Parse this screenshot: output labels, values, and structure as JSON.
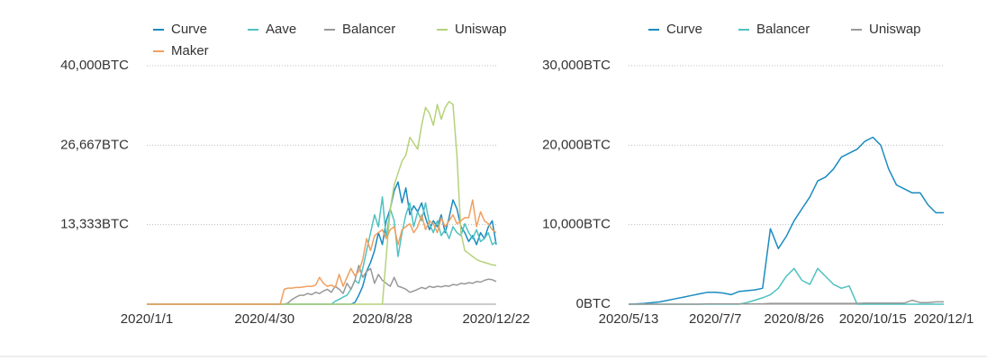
{
  "chart_data": [
    {
      "type": "line",
      "categories": [
        "2020/1/1",
        null,
        null,
        null,
        null,
        null,
        null,
        null,
        null,
        null,
        null,
        null,
        null,
        null,
        null,
        null,
        null,
        null,
        null,
        null,
        null,
        null,
        null,
        null,
        null,
        null,
        null,
        null,
        null,
        null,
        "2020/4/30",
        null,
        null,
        null,
        null,
        null,
        null,
        null,
        null,
        null,
        null,
        null,
        null,
        null,
        null,
        null,
        null,
        null,
        null,
        null,
        null,
        null,
        null,
        null,
        null,
        null,
        null,
        null,
        null,
        null,
        "2020/8/28",
        null,
        null,
        null,
        null,
        null,
        null,
        null,
        null,
        null,
        null,
        null,
        null,
        null,
        null,
        null,
        null,
        null,
        null,
        null,
        null,
        null,
        null,
        null,
        null,
        null,
        null,
        null,
        null,
        "2020/12/22"
      ],
      "series": [
        {
          "name": "Curve",
          "color": "#1a8bc0",
          "values": [
            0,
            0,
            0,
            0,
            0,
            0,
            0,
            0,
            0,
            0,
            0,
            0,
            0,
            0,
            0,
            0,
            0,
            0,
            0,
            0,
            0,
            0,
            0,
            0,
            0,
            0,
            0,
            0,
            0,
            0,
            0,
            0,
            0,
            0,
            0,
            0,
            0,
            0,
            0,
            0,
            0,
            0,
            0,
            0,
            0,
            0,
            0,
            0,
            0,
            0,
            0,
            0,
            0,
            300,
            1500,
            3000,
            5500,
            7000,
            9000,
            12000,
            10000,
            14000,
            16000,
            19000,
            20500,
            17000,
            19500,
            15000,
            16500,
            15500,
            17000,
            14500,
            12500,
            14000,
            13000,
            15000,
            12000,
            14500,
            17500,
            16000,
            13000,
            12000,
            10500,
            11500,
            10000,
            12000,
            11000,
            13000,
            14000,
            10000
          ]
        },
        {
          "name": "Aave",
          "color": "#4fc1c0",
          "values": [
            0,
            0,
            0,
            0,
            0,
            0,
            0,
            0,
            0,
            0,
            0,
            0,
            0,
            0,
            0,
            0,
            0,
            0,
            0,
            0,
            0,
            0,
            0,
            0,
            0,
            0,
            0,
            0,
            0,
            0,
            0,
            0,
            0,
            0,
            0,
            0,
            0,
            0,
            0,
            0,
            0,
            0,
            0,
            0,
            0,
            0,
            0,
            0,
            500,
            800,
            1200,
            1500,
            2500,
            4000,
            3500,
            6000,
            9000,
            12000,
            15000,
            13000,
            18000,
            11000,
            16000,
            14000,
            8000,
            12000,
            15000,
            17000,
            13000,
            15500,
            14000,
            17000,
            13500,
            12000,
            14000,
            11500,
            12500,
            11000,
            13000,
            12000,
            11500,
            13500,
            12000,
            11000,
            12500,
            10500,
            11000,
            12000,
            10000,
            10500
          ]
        },
        {
          "name": "Balancer",
          "color": "#999999",
          "values": [
            0,
            0,
            0,
            0,
            0,
            0,
            0,
            0,
            0,
            0,
            0,
            0,
            0,
            0,
            0,
            0,
            0,
            0,
            0,
            0,
            0,
            0,
            0,
            0,
            0,
            0,
            0,
            0,
            0,
            0,
            0,
            0,
            0,
            0,
            0,
            0,
            200,
            800,
            1200,
            1500,
            1500,
            1800,
            1600,
            2000,
            1800,
            2200,
            2500,
            2000,
            3000,
            2500,
            1800,
            3500,
            2500,
            4000,
            6500,
            4500,
            5500,
            6000,
            3500,
            5000,
            4000,
            3500,
            3000,
            4500,
            3000,
            2800,
            2500,
            2000,
            2200,
            2500,
            2800,
            2600,
            3000,
            2800,
            3000,
            2900,
            3100,
            3000,
            3300,
            3200,
            3500,
            3400,
            3600,
            3500,
            3800,
            3700,
            4000,
            4200,
            4100,
            3800
          ]
        },
        {
          "name": "Uniswap",
          "color": "#b5d27a",
          "values": [
            0,
            0,
            0,
            0,
            0,
            0,
            0,
            0,
            0,
            0,
            0,
            0,
            0,
            0,
            0,
            0,
            0,
            0,
            0,
            0,
            0,
            0,
            0,
            0,
            0,
            0,
            0,
            0,
            0,
            0,
            0,
            0,
            0,
            0,
            0,
            0,
            0,
            0,
            0,
            0,
            0,
            0,
            0,
            0,
            0,
            0,
            0,
            0,
            0,
            0,
            0,
            0,
            0,
            0,
            0,
            0,
            0,
            0,
            0,
            0,
            0,
            8000,
            16000,
            20000,
            22000,
            24000,
            25000,
            28000,
            27000,
            26000,
            30000,
            33000,
            32000,
            30000,
            33500,
            31000,
            33000,
            34000,
            33500,
            25000,
            12000,
            9000,
            8500,
            8000,
            7500,
            7200,
            7000,
            6800,
            6600,
            6500
          ]
        },
        {
          "name": "Maker",
          "color": "#f0a060",
          "values": [
            0,
            0,
            0,
            0,
            0,
            0,
            0,
            0,
            0,
            0,
            0,
            0,
            0,
            0,
            0,
            0,
            0,
            0,
            0,
            0,
            0,
            0,
            0,
            0,
            0,
            0,
            0,
            0,
            0,
            0,
            0,
            0,
            0,
            0,
            0,
            2500,
            2700,
            2700,
            2800,
            2800,
            2900,
            3000,
            3000,
            3200,
            4500,
            3500,
            3000,
            3200,
            2800,
            5000,
            3000,
            4500,
            6000,
            4800,
            5500,
            7500,
            11000,
            9000,
            11500,
            12000,
            12500,
            11000,
            12500,
            13000,
            10000,
            12500,
            13000,
            13500,
            12000,
            13000,
            15000,
            12500,
            14000,
            13500,
            12000,
            14500,
            13000,
            14000,
            15000,
            13500,
            14000,
            14500,
            14500,
            17500,
            13000,
            15500,
            14000,
            13500,
            12500,
            12000
          ]
        }
      ],
      "ylim": [
        0,
        40000
      ],
      "yticks": [
        {
          "value": 13333,
          "label": "13,333BTC"
        },
        {
          "value": 26667,
          "label": "26,667BTC"
        },
        {
          "value": 40000,
          "label": "40,000BTC"
        }
      ],
      "grid": true,
      "legend": "top"
    },
    {
      "type": "line",
      "categories": [
        "2020/5/13",
        null,
        null,
        null,
        null,
        null,
        null,
        null,
        null,
        null,
        null,
        "2020/7/7",
        null,
        null,
        null,
        null,
        null,
        null,
        null,
        null,
        null,
        "2020/8/26",
        null,
        null,
        null,
        null,
        null,
        null,
        null,
        null,
        null,
        "2020/10/15",
        null,
        null,
        null,
        null,
        null,
        null,
        null,
        null,
        "2020/12/1"
      ],
      "series": [
        {
          "name": "Curve",
          "color": "#1a8bc0",
          "values": [
            0,
            50,
            100,
            200,
            300,
            500,
            700,
            900,
            1100,
            1300,
            1500,
            1500,
            1400,
            1200,
            1600,
            1700,
            1800,
            2000,
            9500,
            7000,
            8500,
            10500,
            12000,
            13500,
            15500,
            16000,
            17000,
            18500,
            19000,
            19500,
            20500,
            21000,
            20000,
            17000,
            15000,
            14500,
            14000,
            14000,
            12500,
            11500,
            11500
          ]
        },
        {
          "name": "Balancer",
          "color": "#4fc1c0",
          "values": [
            0,
            0,
            0,
            0,
            0,
            0,
            0,
            0,
            0,
            0,
            0,
            0,
            0,
            0,
            0,
            200,
            500,
            800,
            1200,
            2000,
            3500,
            4500,
            3000,
            2500,
            4500,
            3500,
            2500,
            2000,
            2300,
            0,
            0,
            0,
            0,
            0,
            0,
            0,
            0,
            0,
            0,
            0,
            0
          ]
        },
        {
          "name": "Uniswap",
          "color": "#999999",
          "values": [
            0,
            0,
            0,
            0,
            0,
            0,
            0,
            0,
            0,
            0,
            50,
            50,
            50,
            50,
            50,
            50,
            50,
            50,
            100,
            100,
            100,
            100,
            100,
            100,
            100,
            100,
            100,
            100,
            100,
            100,
            150,
            150,
            150,
            150,
            150,
            150,
            500,
            200,
            200,
            300,
            300
          ]
        }
      ],
      "ylim": [
        0,
        30000
      ],
      "yticks": [
        {
          "value": 0,
          "label": "0BTC"
        },
        {
          "value": 10000,
          "label": "10,000BTC"
        },
        {
          "value": 20000,
          "label": "20,000BTC"
        },
        {
          "value": 30000,
          "label": "30,000BTC"
        }
      ],
      "grid": true,
      "legend": "top"
    }
  ]
}
